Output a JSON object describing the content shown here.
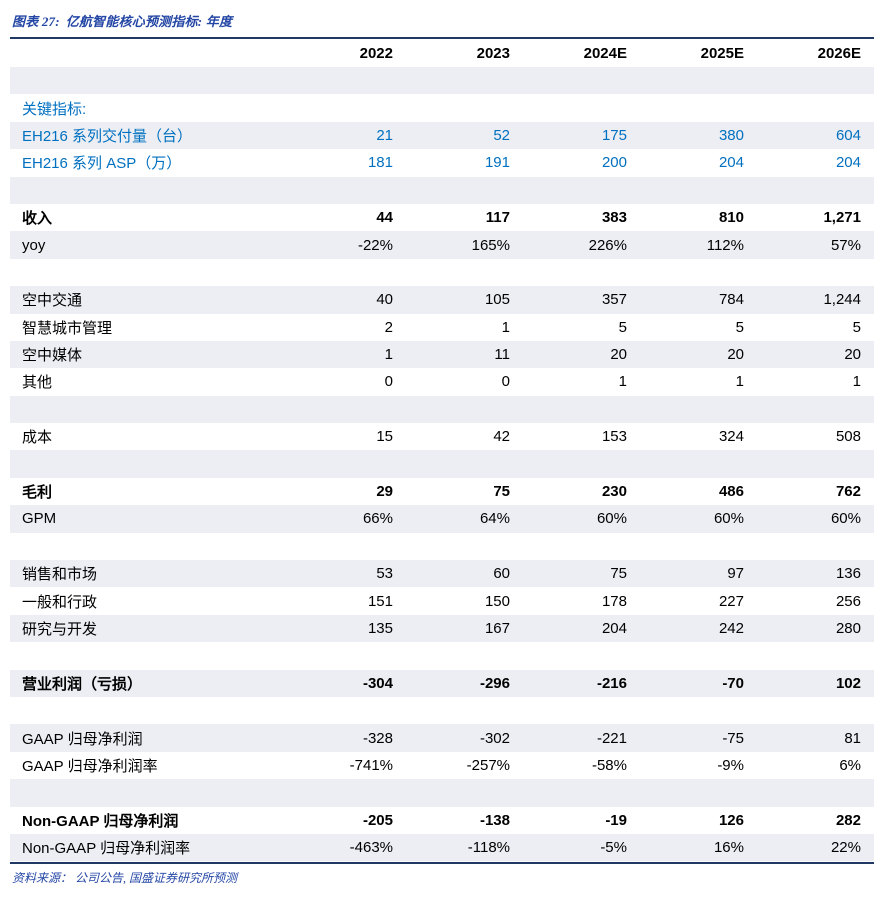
{
  "title": {
    "prefix": "图表 27:",
    "text": "亿航智能核心预测指标: 年度"
  },
  "footer": {
    "text": "资料来源： 公司公告, 国盛证券研究所预测"
  },
  "colors": {
    "rule_navy": "#1F3864",
    "title_blue": "#2446A5",
    "key_metric_blue": "#0070C0",
    "stripe_gray": "#ECEEF3",
    "body_text": "#000000"
  },
  "table": {
    "columns": [
      "2022",
      "2023",
      "2024E",
      "2025E",
      "2026E"
    ],
    "rows": [
      {
        "label": "",
        "values": [
          "",
          "",
          "",
          "",
          ""
        ],
        "empty": true,
        "shaded": true
      },
      {
        "label": "关键指标:",
        "values": [
          "",
          "",
          "",
          "",
          ""
        ],
        "blue": true,
        "shaded": false
      },
      {
        "label": "EH216 系列交付量（台）",
        "values": [
          "21",
          "52",
          "175",
          "380",
          "604"
        ],
        "blue": true,
        "shaded": true
      },
      {
        "label": "EH216 系列 ASP（万）",
        "values": [
          "181",
          "191",
          "200",
          "204",
          "204"
        ],
        "blue": true,
        "shaded": false
      },
      {
        "label": "",
        "values": [
          "",
          "",
          "",
          "",
          ""
        ],
        "empty": true,
        "shaded": true
      },
      {
        "label": "收入",
        "values": [
          "44",
          "117",
          "383",
          "810",
          "1,271"
        ],
        "bold": true,
        "shaded": false
      },
      {
        "label": "yoy",
        "values": [
          "-22%",
          "165%",
          "226%",
          "112%",
          "57%"
        ],
        "shaded": true
      },
      {
        "label": "",
        "values": [
          "",
          "",
          "",
          "",
          ""
        ],
        "empty": true,
        "shaded": false
      },
      {
        "label": "空中交通",
        "values": [
          "40",
          "105",
          "357",
          "784",
          "1,244"
        ],
        "shaded": true
      },
      {
        "label": "智慧城市管理",
        "values": [
          "2",
          "1",
          "5",
          "5",
          "5"
        ],
        "shaded": false
      },
      {
        "label": "空中媒体",
        "values": [
          "1",
          "11",
          "20",
          "20",
          "20"
        ],
        "shaded": true
      },
      {
        "label": "其他",
        "values": [
          "0",
          "0",
          "1",
          "1",
          "1"
        ],
        "shaded": false
      },
      {
        "label": "",
        "values": [
          "",
          "",
          "",
          "",
          ""
        ],
        "empty": true,
        "shaded": true
      },
      {
        "label": "成本",
        "values": [
          "15",
          "42",
          "153",
          "324",
          "508"
        ],
        "shaded": false
      },
      {
        "label": "",
        "values": [
          "",
          "",
          "",
          "",
          ""
        ],
        "empty": true,
        "shaded": true
      },
      {
        "label": "毛利",
        "values": [
          "29",
          "75",
          "230",
          "486",
          "762"
        ],
        "bold": true,
        "shaded": false
      },
      {
        "label": "GPM",
        "values": [
          "66%",
          "64%",
          "60%",
          "60%",
          "60%"
        ],
        "shaded": true
      },
      {
        "label": "",
        "values": [
          "",
          "",
          "",
          "",
          ""
        ],
        "empty": true,
        "shaded": false
      },
      {
        "label": "销售和市场",
        "values": [
          "53",
          "60",
          "75",
          "97",
          "136"
        ],
        "shaded": true
      },
      {
        "label": "一般和行政",
        "values": [
          "151",
          "150",
          "178",
          "227",
          "256"
        ],
        "shaded": false
      },
      {
        "label": "研究与开发",
        "values": [
          "135",
          "167",
          "204",
          "242",
          "280"
        ],
        "shaded": true
      },
      {
        "label": "",
        "values": [
          "",
          "",
          "",
          "",
          ""
        ],
        "empty": true,
        "shaded": false
      },
      {
        "label": "营业利润（亏损）",
        "values": [
          "-304",
          "-296",
          "-216",
          "-70",
          "102"
        ],
        "bold": true,
        "shaded": true
      },
      {
        "label": "",
        "values": [
          "",
          "",
          "",
          "",
          ""
        ],
        "empty": true,
        "shaded": false
      },
      {
        "label": "GAAP 归母净利润",
        "values": [
          "-328",
          "-302",
          "-221",
          "-75",
          "81"
        ],
        "shaded": true
      },
      {
        "label": "GAAP 归母净利润率",
        "values": [
          "-741%",
          "-257%",
          "-58%",
          "-9%",
          "6%"
        ],
        "shaded": false
      },
      {
        "label": "",
        "values": [
          "",
          "",
          "",
          "",
          ""
        ],
        "empty": true,
        "shaded": true
      },
      {
        "label": "Non-GAAP 归母净利润",
        "values": [
          "-205",
          "-138",
          "-19",
          "126",
          "282"
        ],
        "bold": true,
        "shaded": false
      },
      {
        "label": "Non-GAAP 归母净利润率",
        "values": [
          "-463%",
          "-118%",
          "-5%",
          "16%",
          "22%"
        ],
        "shaded": true
      }
    ]
  }
}
